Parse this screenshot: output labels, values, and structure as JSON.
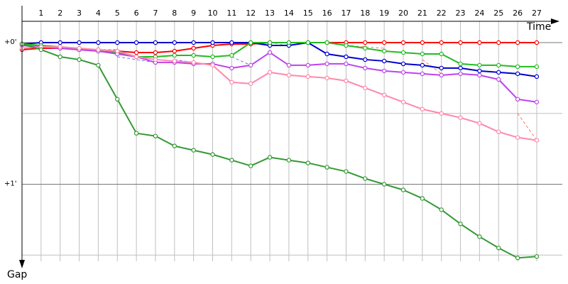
{
  "chart_data": {
    "type": "line",
    "xlabel": "Time",
    "ylabel": "Gap",
    "lap_labels": [
      "1",
      "2",
      "3",
      "4",
      "5",
      "6",
      "7",
      "8",
      "9",
      "10",
      "11",
      "12",
      "13",
      "14",
      "15",
      "16",
      "17",
      "18",
      "19",
      "20",
      "21",
      "22",
      "23",
      "24",
      "25",
      "26",
      "27"
    ],
    "y_tick_labels": [
      "+0'",
      "+1'"
    ],
    "y_ticks": [
      0,
      1
    ],
    "y_gridlines": [
      0,
      0.5,
      1,
      1.5
    ],
    "ylim": [
      0,
      1.5
    ],
    "grid": true,
    "colors": {
      "red": "#ff0000",
      "blue": "#0000cc",
      "green": "#22bb22",
      "purple": "#bb44ee",
      "pink": "#ff88aa",
      "darkgreen": "#339933",
      "gridline": "#c0c0c0",
      "axis": "#000000"
    },
    "series": [
      {
        "color": "red",
        "x": [
          0,
          1,
          2,
          3,
          4,
          5,
          6,
          7,
          8,
          9,
          10,
          11,
          12,
          13,
          14,
          15,
          16,
          17,
          18,
          19,
          20,
          21,
          22,
          23,
          24,
          25,
          26,
          27
        ],
        "y": [
          0.05,
          0.04,
          0.04,
          0.05,
          0.05,
          0.06,
          0.07,
          0.07,
          0.06,
          0.04,
          0.02,
          0.01,
          0.01,
          0.0,
          0.0,
          0.0,
          0.0,
          0.0,
          0.0,
          0.0,
          0.0,
          0.0,
          0.0,
          0.0,
          0.0,
          0.0,
          0.0,
          0.0
        ]
      },
      {
        "color": "blue",
        "x": [
          0,
          1,
          2,
          3,
          4,
          5,
          6,
          7,
          8,
          9,
          10,
          11,
          12,
          13,
          14,
          15,
          16,
          17,
          18,
          19,
          20,
          21,
          22,
          23,
          24,
          25,
          26,
          27
        ],
        "y": [
          0.01,
          0.0,
          0.0,
          0.0,
          0.0,
          0.0,
          0.0,
          0.0,
          0.0,
          0.0,
          0.0,
          0.0,
          0.0,
          0.02,
          0.02,
          0.0,
          0.08,
          0.1,
          0.12,
          0.13,
          0.15,
          0.16,
          0.18,
          0.18,
          0.2,
          0.21,
          0.22,
          0.24
        ]
      },
      {
        "color": "green",
        "x": [
          0,
          1,
          2,
          3,
          4,
          5,
          6,
          7,
          8,
          9,
          10,
          11,
          12,
          13,
          14,
          15,
          16,
          17,
          18,
          19,
          20,
          21,
          22,
          23,
          24,
          25,
          26,
          27
        ],
        "y": [
          0.01,
          0.02,
          0.03,
          0.05,
          0.06,
          0.07,
          0.1,
          0.1,
          0.09,
          0.09,
          0.1,
          0.09,
          0.0,
          0.0,
          0.0,
          0.0,
          0.0,
          0.02,
          0.04,
          0.06,
          0.07,
          0.08,
          0.08,
          0.15,
          0.16,
          0.16,
          0.17,
          0.17
        ]
      },
      {
        "color": "purple",
        "x": [
          0,
          1,
          2,
          3,
          4,
          5,
          6,
          7,
          8,
          9,
          10,
          11,
          12,
          13,
          14,
          15,
          16,
          17,
          18,
          19,
          20,
          21,
          22,
          23,
          24,
          25,
          26,
          27
        ],
        "y": [
          0.02,
          0.03,
          0.04,
          0.05,
          0.06,
          0.08,
          0.1,
          0.14,
          0.14,
          0.15,
          0.15,
          0.18,
          0.16,
          0.07,
          0.16,
          0.16,
          0.15,
          0.15,
          0.18,
          0.2,
          0.21,
          0.22,
          0.23,
          0.22,
          0.23,
          0.26,
          0.4,
          0.42
        ]
      },
      {
        "color": "pink",
        "x": [
          0,
          1,
          2,
          3,
          4,
          5,
          6,
          7,
          8,
          9,
          10,
          11,
          12,
          13,
          14,
          15,
          16,
          17,
          18,
          19,
          20,
          21,
          22,
          23,
          24,
          25,
          26,
          27
        ],
        "y": [
          0.04,
          0.03,
          0.03,
          0.04,
          0.05,
          0.06,
          0.1,
          0.12,
          0.13,
          0.14,
          0.16,
          0.28,
          0.29,
          0.21,
          0.23,
          0.24,
          0.25,
          0.27,
          0.32,
          0.37,
          0.42,
          0.47,
          0.5,
          0.53,
          0.57,
          0.63,
          0.67,
          0.69
        ]
      },
      {
        "color": "darkgreen",
        "x": [
          0,
          1,
          2,
          3,
          4,
          5,
          6,
          7,
          8,
          9,
          10,
          11,
          12,
          13,
          14,
          15,
          16,
          17,
          18,
          19,
          20,
          21,
          22,
          23,
          24,
          25,
          26,
          27
        ],
        "y": [
          0.01,
          0.05,
          0.1,
          0.12,
          0.16,
          0.4,
          0.64,
          0.66,
          0.73,
          0.76,
          0.79,
          0.83,
          0.87,
          0.81,
          0.83,
          0.85,
          0.88,
          0.91,
          0.96,
          1.0,
          1.04,
          1.1,
          1.18,
          1.28,
          1.37,
          1.45,
          1.52,
          1.51
        ]
      }
    ],
    "pit_stops": [
      {
        "color": "blue",
        "from": [
          1,
          0.03
        ],
        "to": [
          2,
          0.03
        ]
      },
      {
        "color": "blue",
        "from": [
          4,
          0.05
        ],
        "to": [
          5,
          0.05
        ]
      },
      {
        "color": "blue",
        "from": [
          5,
          0.1
        ],
        "to": [
          7,
          0.14
        ]
      },
      {
        "color": "blue",
        "from": [
          8,
          0.12
        ],
        "to": [
          9,
          0.14
        ]
      },
      {
        "color": "blue",
        "from": [
          11,
          0.1
        ],
        "to": [
          12,
          0.16
        ]
      },
      {
        "color": "green",
        "from": [
          13,
          0.0
        ],
        "to": [
          14,
          0.02
        ]
      },
      {
        "color": "red",
        "from": [
          17,
          0.02
        ],
        "to": [
          19,
          0.04
        ]
      },
      {
        "color": "red",
        "from": [
          21,
          0.12
        ],
        "to": [
          22,
          0.22
        ]
      },
      {
        "color": "red",
        "from": [
          26,
          0.5
        ],
        "to": [
          27,
          0.69
        ]
      }
    ]
  }
}
